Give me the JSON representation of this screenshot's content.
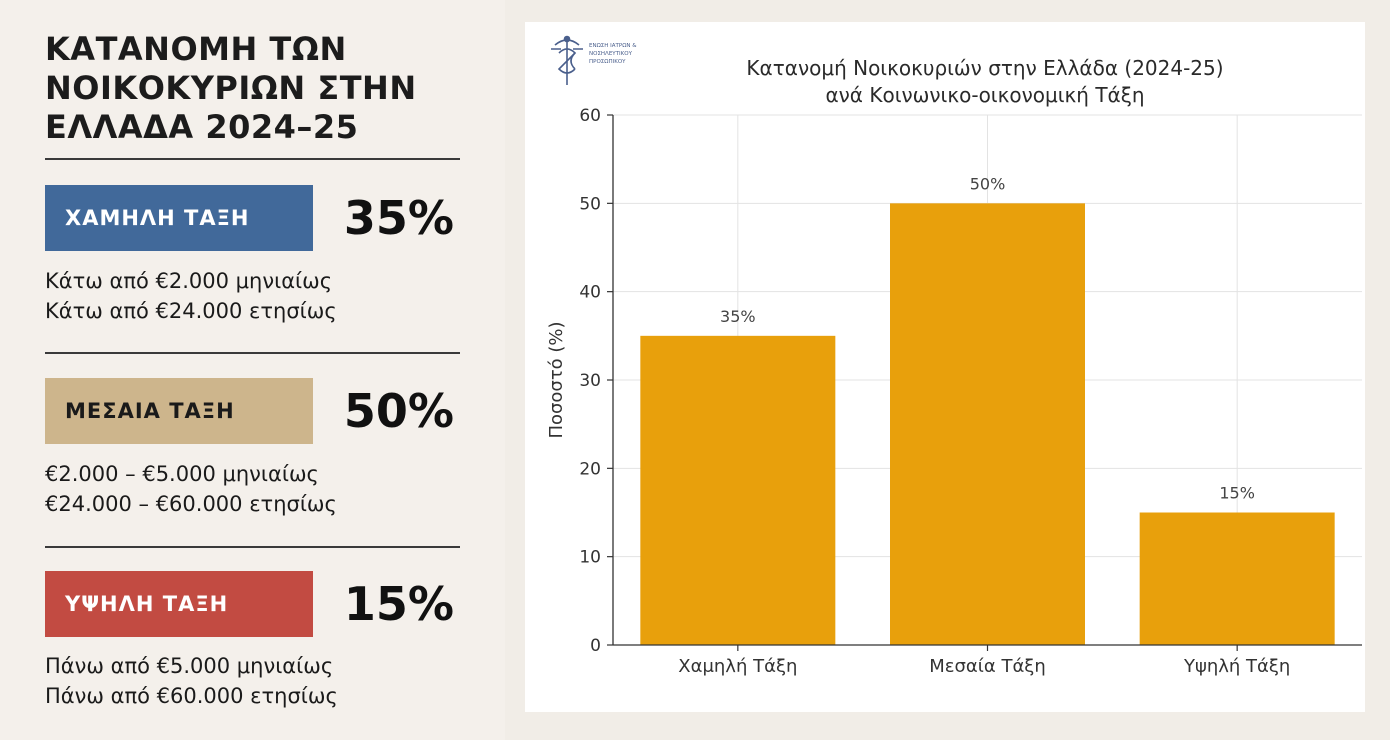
{
  "infographic": {
    "title_lines": [
      "ΚΑΤΑΝΟΜΗ ΤΩΝ",
      "ΝΟΙΚΟΚΥΡΙΩΝ ΣΤΗΝ",
      "ΕΛΛΑΔΑ 2024–25"
    ],
    "classes": [
      {
        "label": "ΧΑΜΗΛΗ ΤΑΞΗ",
        "percent": "35%",
        "color": "#41699a",
        "text_color": "#ffffff",
        "lines": [
          "Κάτω από €2.000 μηνιαίως",
          "Κάτω από €24.000 ετησίως"
        ]
      },
      {
        "label": "ΜΕΣΑΙΑ ΤΑΞΗ",
        "percent": "50%",
        "color": "#cdb58c",
        "text_color": "#1a1a1a",
        "lines": [
          "€2.000 – €5.000 μηνιαίως",
          "€24.000 – €60.000 ετησίως"
        ]
      },
      {
        "label": "ΥΨΗΛΗ ΤΑΞΗ",
        "percent": "15%",
        "color": "#c24b42",
        "text_color": "#ffffff",
        "lines": [
          "Πάνω από €5.000 μηνιαίως",
          "Πάνω από €60.000 ετησίως"
        ]
      }
    ]
  },
  "logo": {
    "name": "caduceus-logo-icon",
    "text_lines": [
      "ΕΝΩΣΗ ΙΑΤΡΩΝ &",
      "ΝΟΣΗΛΕΥΤΙΚΟΥ",
      "ΠΡΟΣΩΠΙΚΟΥ"
    ]
  },
  "chart_data": {
    "type": "bar",
    "title": "Κατανομή Νοικοκυριών στην Ελλάδα (2024-25)",
    "subtitle": "ανά Κοινωνικο-οικονομική Τάξη",
    "categories": [
      "Χαμηλή Τάξη",
      "Μεσαία Τάξη",
      "Υψηλή Τάξη"
    ],
    "values": [
      35,
      50,
      15
    ],
    "data_labels": [
      "35%",
      "50%",
      "15%"
    ],
    "ylabel": "Ποσοστό (%)",
    "xlabel": "",
    "ylim": [
      0,
      60
    ],
    "yticks": [
      0,
      10,
      20,
      30,
      40,
      50,
      60
    ],
    "grid": true,
    "bar_color": "#e8a00c"
  }
}
